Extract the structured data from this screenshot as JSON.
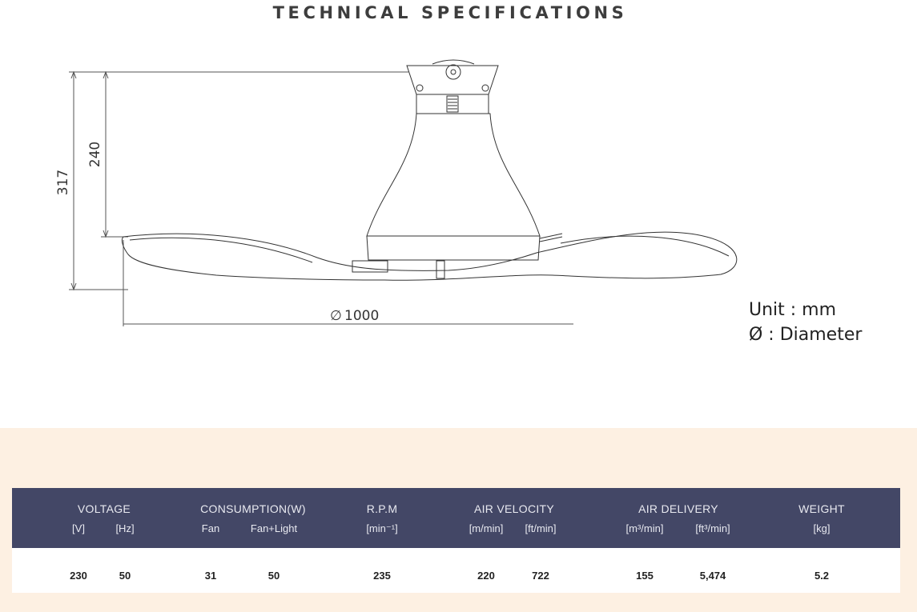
{
  "title": "TECHNICAL SPECIFICATIONS",
  "drawing": {
    "total_height": "317",
    "body_height": "240",
    "diameter_symbol": "∅",
    "diameter_value": "1000"
  },
  "legend": {
    "unit": "Unit : mm",
    "diameter": "Ø : Diameter"
  },
  "table": {
    "groups": {
      "voltage": "VOLTAGE",
      "consumption": "CONSUMPTION(W)",
      "rpm": "R.P.M",
      "air_velocity": "AIR VELOCITY",
      "air_delivery": "AIR DELIVERY",
      "weight": "WEIGHT"
    },
    "units": {
      "v": "[V]",
      "hz": "[Hz]",
      "fan": "Fan",
      "fan_light": "Fan+Light",
      "rpm": "[min⁻¹]",
      "m_min": "[m/min]",
      "ft_min": "[ft/min]",
      "m3_min": "[m³/min]",
      "ft3_min": "[ft³/min]",
      "kg": "[kg]"
    },
    "values": {
      "v": "230",
      "hz": "50",
      "fan": "31",
      "fan_light": "50",
      "rpm": "235",
      "m_min": "220",
      "ft_min": "722",
      "m3_min": "155",
      "ft3_min": "5,474",
      "kg": "5.2"
    },
    "colors": {
      "header_bg": "#434766",
      "band_bg": "#fdf0e2"
    }
  }
}
